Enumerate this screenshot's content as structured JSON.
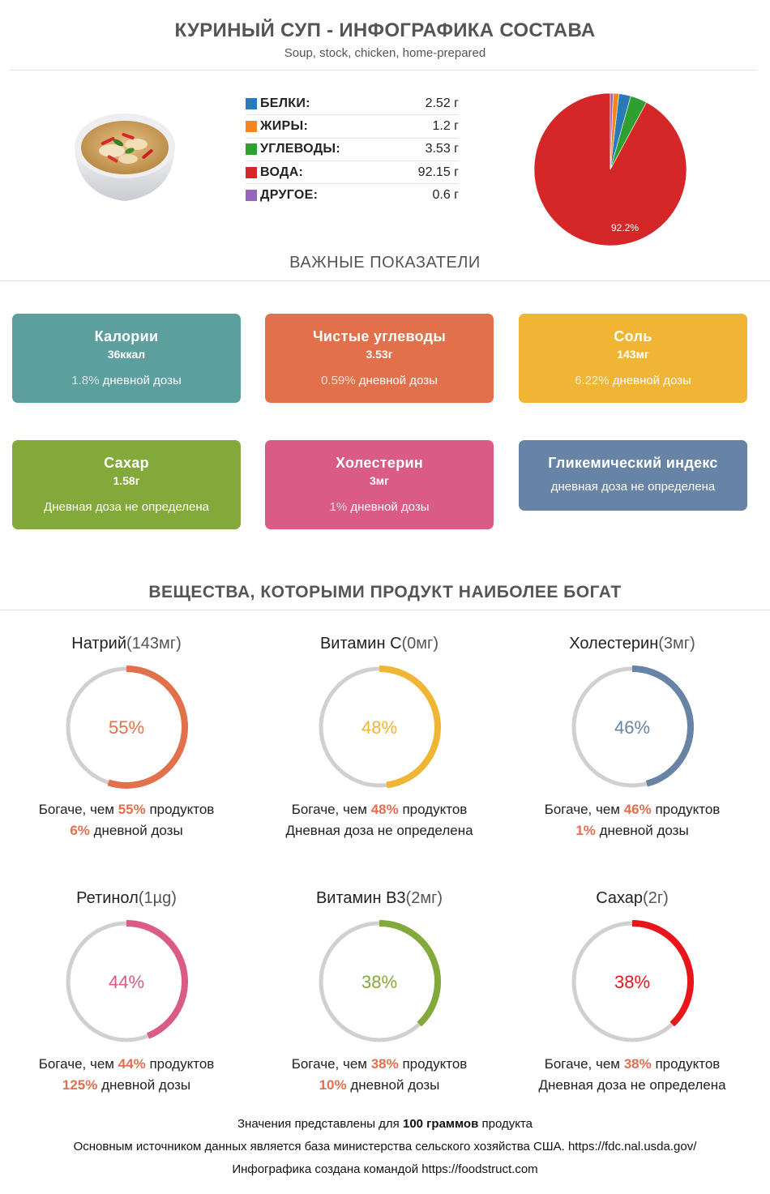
{
  "header": {
    "title": "КУРИНЫЙ СУП - ИНФОГРАФИКА СОСТАВА",
    "subtitle": "Soup, stock, chicken, home-prepared"
  },
  "macros": [
    {
      "name": "БЕЛКИ:",
      "value": "2.52 г",
      "color": "#2a7ab9"
    },
    {
      "name": "ЖИРЫ:",
      "value": "1.2 г",
      "color": "#f5861f"
    },
    {
      "name": "УГЛЕВОДЫ:",
      "value": "3.53 г",
      "color": "#2fa02f"
    },
    {
      "name": "ВОДА:",
      "value": "92.15 г",
      "color": "#d62728"
    },
    {
      "name": "ДРУГОЕ:",
      "value": "0.6 г",
      "color": "#9467bd"
    }
  ],
  "chart_data": {
    "type": "pie",
    "slices": [
      {
        "label": "ВОДА",
        "value": 92.15,
        "color": "#d62728"
      },
      {
        "label": "УГЛЕВОДЫ",
        "value": 3.53,
        "color": "#2fa02f"
      },
      {
        "label": "БЕЛКИ",
        "value": 2.52,
        "color": "#2a7ab9"
      },
      {
        "label": "ЖИРЫ",
        "value": 1.2,
        "color": "#f5861f"
      },
      {
        "label": "ДРУГОЕ",
        "value": 0.6,
        "color": "#9467bd"
      }
    ],
    "data_label": "92.2%"
  },
  "sections": {
    "key_indicators": "ВАЖНЫЕ ПОКАЗАТЕЛИ",
    "rich_in": "ВЕЩЕСТВА, КОТОРЫМИ ПРОДУКТ НАИБОЛЕЕ БОГАТ"
  },
  "cards": [
    {
      "title": "Калории",
      "amount": "36ккал",
      "pct": "1.8%",
      "daily": " дневной дозы",
      "color": "#5d9e9f"
    },
    {
      "title": "Чистые углеводы",
      "amount": "3.53г",
      "pct": "0.59%",
      "daily": " дневной дозы",
      "color": "#e2714b"
    },
    {
      "title": "Соль",
      "amount": "143мг",
      "pct": "6.22%",
      "daily": " дневной дозы",
      "color": "#f0b535"
    },
    {
      "title": "Сахар",
      "amount": "1.58г",
      "pct": "",
      "daily": "Дневная доза не определена",
      "color": "#82a93a"
    },
    {
      "title": "Холестерин",
      "amount": "3мг",
      "pct": "1%",
      "daily": " дневной дозы",
      "color": "#da5b85"
    },
    {
      "title": "Гликемический индекс",
      "amount": "",
      "pct": "",
      "daily": "дневная доза не определена",
      "color": "#6783a6"
    }
  ],
  "rings": [
    {
      "name": "Натрий",
      "amount": "(143мг)",
      "percent": 55,
      "label": "55%",
      "color": "#e2714b",
      "richer_prefix": "Богаче, чем ",
      "richer_pct": "55%",
      "richer_suffix": " продуктов",
      "daily_pct": "6%",
      "daily_text": " дневной дозы"
    },
    {
      "name": "Витамин C",
      "amount": "(0мг)",
      "percent": 48,
      "label": "48%",
      "color": "#f0b535",
      "richer_prefix": "Богаче, чем ",
      "richer_pct": "48%",
      "richer_suffix": " продуктов",
      "daily_pct": "",
      "daily_text": "Дневная доза не определена"
    },
    {
      "name": "Холестерин",
      "amount": "(3мг)",
      "percent": 46,
      "label": "46%",
      "color": "#6783a6",
      "richer_prefix": "Богаче, чем ",
      "richer_pct": "46%",
      "richer_suffix": " продуктов",
      "daily_pct": "1%",
      "daily_text": " дневной дозы"
    },
    {
      "name": "Ретинол",
      "amount": "(1µg)",
      "percent": 44,
      "label": "44%",
      "color": "#da5b85",
      "richer_prefix": "Богаче, чем ",
      "richer_pct": "44%",
      "richer_suffix": " продуктов",
      "daily_pct": "125%",
      "daily_text": " дневной дозы"
    },
    {
      "name": "Витамин B3",
      "amount": "(2мг)",
      "percent": 38,
      "label": "38%",
      "color": "#82a93a",
      "richer_prefix": "Богаче, чем ",
      "richer_pct": "38%",
      "richer_suffix": " продуктов",
      "daily_pct": "10%",
      "daily_text": " дневной дозы"
    },
    {
      "name": "Сахар",
      "amount": "(2г)",
      "percent": 38,
      "label": "38%",
      "color": "#e8161b",
      "richer_prefix": "Богаче, чем ",
      "richer_pct": "38%",
      "richer_suffix": " продуктов",
      "daily_pct": "",
      "daily_text": "Дневная доза не определена"
    }
  ],
  "footer": {
    "line1_prefix": "Значения представлены для ",
    "line1_bold": "100 граммов",
    "line1_suffix": " продукта",
    "line2": "Основным источником данных является база министерства сельского хозяйства США. https://fdc.nal.usda.gov/",
    "line3": "Инфографика создана командой https://foodstruct.com"
  }
}
